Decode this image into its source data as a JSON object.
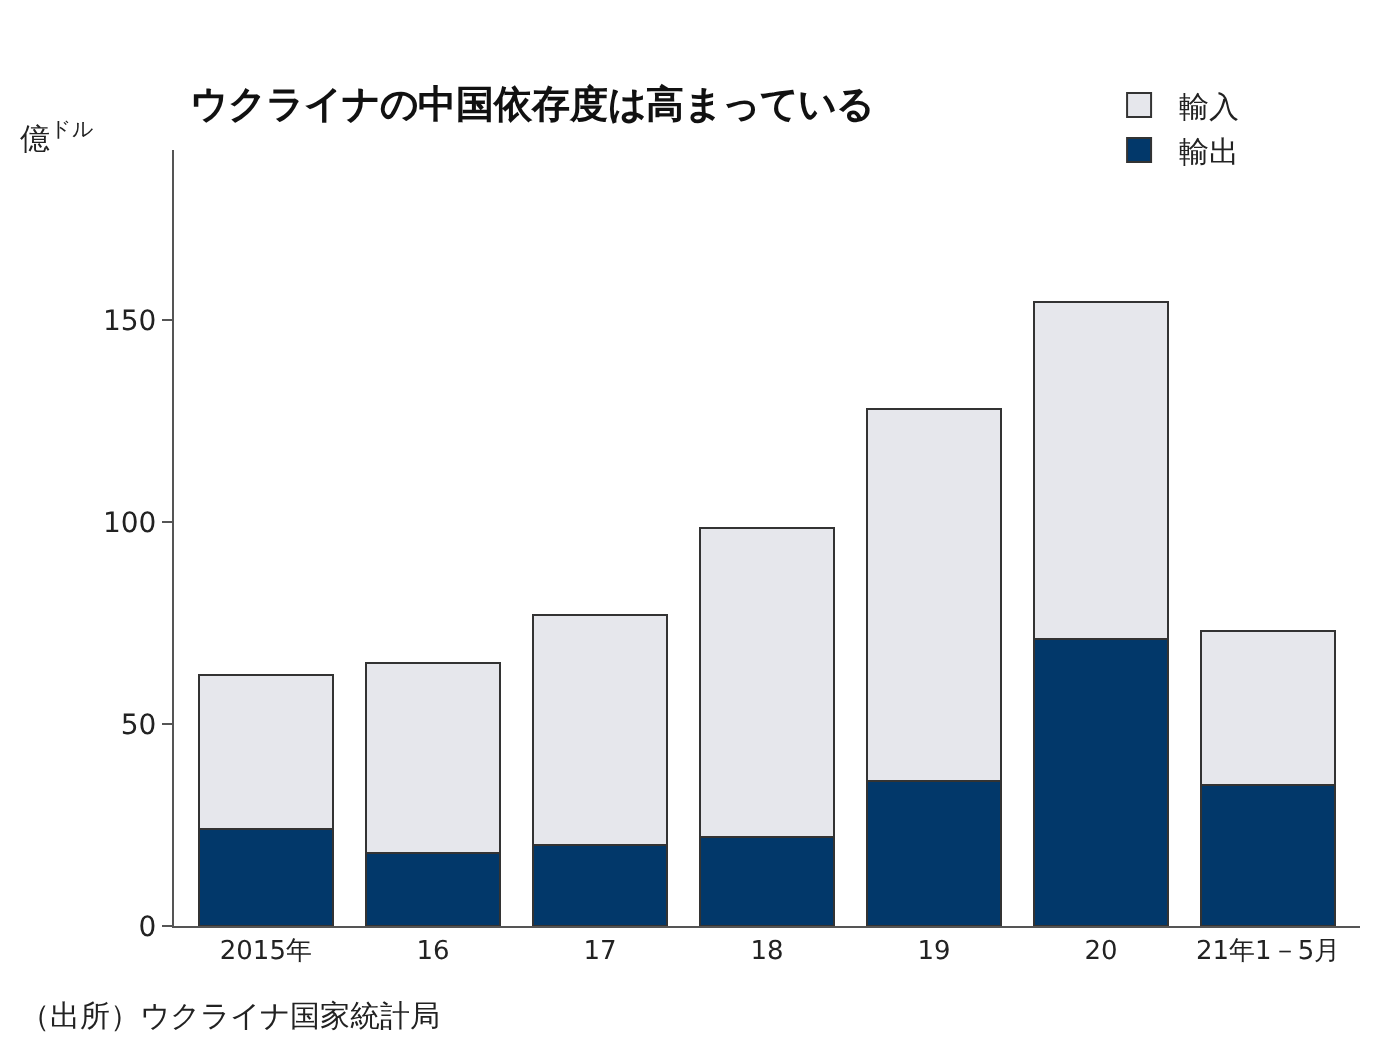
{
  "chart_data": {
    "type": "bar",
    "title": "ウクライナの中国依存度は高まっている",
    "ylabel": "億$^{ドル}$",
    "stacked": true,
    "categories": [
      "2015年",
      "16",
      "17",
      "18",
      "19",
      "20",
      "21年1－5月"
    ],
    "series": [
      {
        "name": "輸出",
        "color": "#02386a",
        "values": [
          24,
          18,
          20,
          22,
          36,
          71,
          35
        ]
      },
      {
        "name": "輸入",
        "color": "#e6e7ec",
        "values": [
          38,
          47,
          57,
          76.5,
          92,
          83.5,
          38
        ]
      }
    ],
    "ylim": [
      0,
      192
    ],
    "yticks": [
      0,
      50,
      100,
      150
    ],
    "legend": "top right",
    "annotations": [
      "（出所）ウクライナ国家統計局"
    ]
  }
}
